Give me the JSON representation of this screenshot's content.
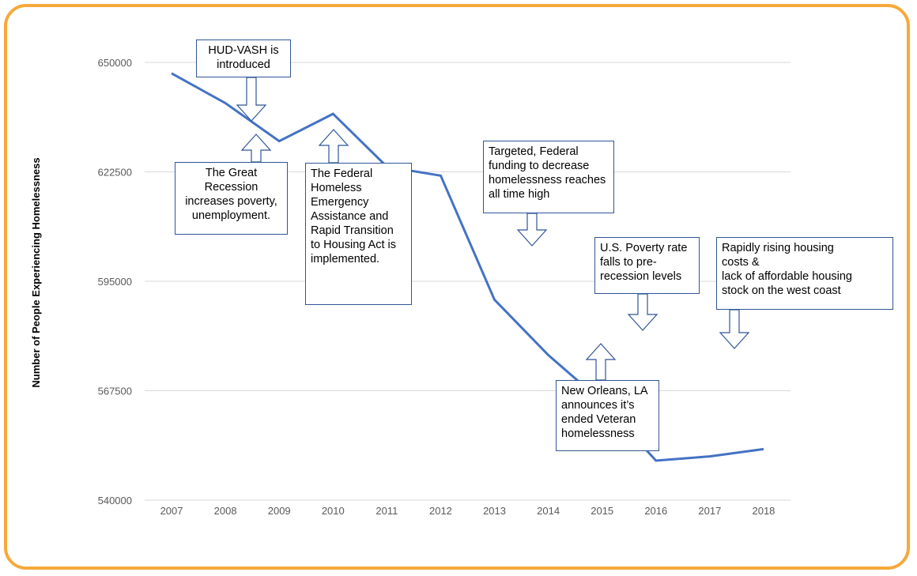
{
  "chart_data": {
    "type": "line",
    "ylabel": "Number of People Experiencing Homelessness",
    "xlabel": "",
    "x": [
      "2007",
      "2008",
      "2009",
      "2010",
      "2011",
      "2012",
      "2013",
      "2014",
      "2015",
      "2016",
      "2017",
      "2018"
    ],
    "series": [
      {
        "values": [
          647258,
          639784,
          630227,
          637077,
          623788,
          621553,
          590364,
          576450,
          564708,
          549928,
          550996,
          552830
        ]
      }
    ],
    "yticks": [
      "540000",
      "567500",
      "595000",
      "622500",
      "650000"
    ],
    "ylim": [
      540000,
      650000
    ],
    "grid": "horizontal",
    "legend": "none",
    "line_color": "#4472c4"
  },
  "annotations": [
    {
      "id": "hud-vash",
      "lines": [
        "HUD-VASH is",
        "introduced"
      ],
      "arrow": "down"
    },
    {
      "id": "recession",
      "lines": [
        "The Great",
        "Recession",
        "increases poverty,",
        "unemployment."
      ],
      "arrow": "up"
    },
    {
      "id": "hearth-act",
      "lines": [
        "The Federal",
        "Homeless",
        "Emergency",
        "Assistance and",
        "Rapid Transition",
        "to Housing Act is",
        "implemented."
      ],
      "arrow": "up"
    },
    {
      "id": "funding",
      "lines": [
        "Targeted, Federal",
        "funding to decrease",
        "homelessness reaches",
        "all time high"
      ],
      "arrow": "down"
    },
    {
      "id": "poverty-rate",
      "lines": [
        "U.S. Poverty rate",
        "falls to pre-",
        "recession levels"
      ],
      "arrow": "down"
    },
    {
      "id": "housing-costs",
      "lines": [
        "Rapidly rising housing",
        "costs &",
        "lack of affordable housing",
        "stock on the west coast"
      ],
      "arrow": "down"
    },
    {
      "id": "new-orleans",
      "lines": [
        "New Orleans, LA",
        "announces it’s",
        "ended Veteran",
        "homelessness"
      ],
      "arrow": "up"
    }
  ],
  "frame_color": "#f5a93a",
  "box_border_color": "#2f5597"
}
